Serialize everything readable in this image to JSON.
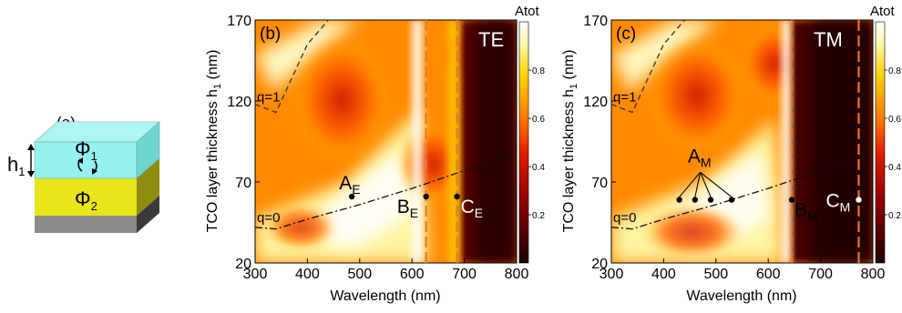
{
  "panel_a": {
    "label": "(a)",
    "phi1": "Φ",
    "phi1_sub": "1",
    "phi2": "Φ",
    "phi2_sub": "2",
    "h": "h",
    "h_sub": "1",
    "colors": {
      "tco_layer": "#8ff0ee",
      "absorber_layer": "#e8e61a",
      "substrate": "#8c8c8c"
    }
  },
  "colorbar_title": "Atot",
  "colorbar_ticks": [
    "0.2",
    "0.4",
    "0.6",
    "0.8"
  ],
  "chart_data": [
    {
      "type": "heatmap",
      "panel_label": "(b)",
      "polarization": "TE",
      "xlabel": "Wavelength (nm)",
      "ylabel_main": "TCO layer thickness h",
      "ylabel_sub": "1",
      "ylabel_unit": " (nm)",
      "xlim": [
        300,
        800
      ],
      "ylim": [
        20,
        170
      ],
      "xticks": [
        300,
        400,
        500,
        600,
        700,
        800
      ],
      "yticks": [
        20,
        70,
        120,
        170
      ],
      "zlim": [
        0,
        1
      ],
      "colorbar_label": "Atot",
      "colormap": "hot",
      "curves": [
        {
          "label_main": "q=1",
          "label_sub": "",
          "style": "dashed",
          "x": [
            300,
            340,
            400,
            440
          ],
          "y": [
            118,
            113,
            155,
            170
          ]
        },
        {
          "label_main": "q=0",
          "label_sub": "",
          "style": "dash-dot",
          "x": [
            300,
            340,
            400,
            500,
            600,
            700,
            800
          ],
          "y": [
            42,
            41,
            47,
            56,
            66,
            77,
            88
          ]
        }
      ],
      "vlines": [
        {
          "x": 627,
          "color": "#e07a30"
        },
        {
          "x": 686,
          "color": "#e07a30"
        }
      ],
      "points": [
        {
          "label_main": "A",
          "label_sub": "E",
          "x": 485,
          "y": 61
        },
        {
          "label_main": "B",
          "label_sub": "E",
          "x": 627,
          "y": 61
        },
        {
          "label_main": "C",
          "label_sub": "E",
          "x": 686,
          "y": 61
        }
      ]
    },
    {
      "type": "heatmap",
      "panel_label": "(c)",
      "polarization": "TM",
      "xlabel": "Wavelength (nm)",
      "ylabel_main": "TCO layer thickness h",
      "ylabel_sub": "1",
      "ylabel_unit": " (nm)",
      "xlim": [
        300,
        800
      ],
      "ylim": [
        20,
        170
      ],
      "xticks": [
        300,
        400,
        500,
        600,
        700,
        800
      ],
      "yticks": [
        20,
        70,
        120,
        170
      ],
      "zlim": [
        0,
        1
      ],
      "colorbar_label": "Atot",
      "colormap": "hot",
      "curves": [
        {
          "label_main": "q=1",
          "label_sub": "",
          "style": "dashed",
          "x": [
            300,
            340,
            400,
            440
          ],
          "y": [
            118,
            113,
            155,
            170
          ]
        },
        {
          "label_main": "q=0",
          "label_sub": "",
          "style": "dash-dot",
          "x": [
            300,
            340,
            400,
            500,
            600,
            700,
            800
          ],
          "y": [
            42,
            41,
            47,
            56,
            66,
            77,
            88
          ]
        }
      ],
      "vlines": [
        {
          "x": 645,
          "color": "#e07a30"
        },
        {
          "x": 773,
          "color": "#e07a30"
        }
      ],
      "points": [
        {
          "label_main": "A",
          "label_sub": "M",
          "x": 430,
          "y": 59
        },
        {
          "label_main": "",
          "label_sub": "",
          "x": 460,
          "y": 59
        },
        {
          "label_main": "",
          "label_sub": "",
          "x": 490,
          "y": 59
        },
        {
          "label_main": "",
          "label_sub": "",
          "x": 530,
          "y": 59
        },
        {
          "label_main": "B",
          "label_sub": "M",
          "x": 645,
          "y": 59
        },
        {
          "label_main": "C",
          "label_sub": "M",
          "x": 773,
          "y": 59
        }
      ]
    }
  ]
}
